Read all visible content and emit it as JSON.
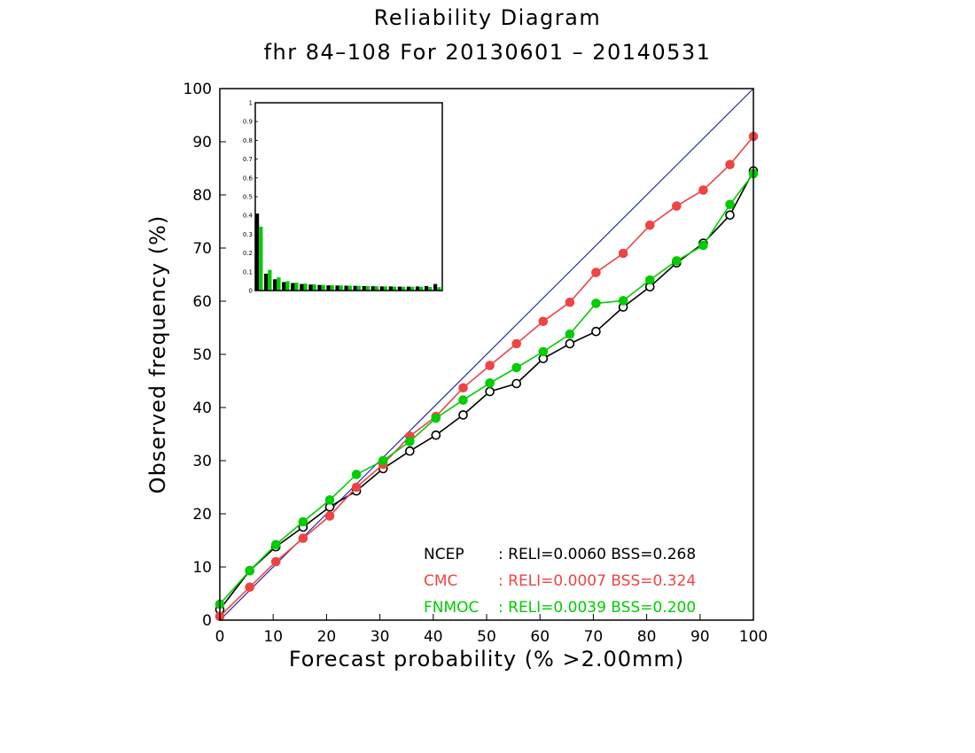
{
  "chart_data": {
    "type": "line",
    "title": "Reliability Diagram",
    "subtitle": "fhr 84–108 For 20130601 – 20140531",
    "xlabel": "Forecast probability (% >2.00mm)",
    "ylabel": "Observed frequency (%)",
    "xlim": [
      0,
      100
    ],
    "ylim": [
      0,
      100
    ],
    "x_ticks": [
      "0",
      "10",
      "20",
      "30",
      "40",
      "50",
      "60",
      "70",
      "80",
      "90",
      "100"
    ],
    "y_ticks": [
      "0",
      "10",
      "20",
      "30",
      "40",
      "50",
      "60",
      "70",
      "80",
      "90",
      "100"
    ],
    "x": [
      0,
      5.6,
      10.5,
      15.6,
      20.6,
      25.6,
      30.6,
      35.6,
      40.5,
      45.6,
      50.6,
      55.6,
      60.6,
      65.6,
      70.5,
      75.6,
      80.6,
      85.6,
      90.6,
      95.6,
      100
    ],
    "perfect_line_color": "#1f2fae",
    "series": [
      {
        "name": "NCEP",
        "color": "#000000",
        "filled": false,
        "values": [
          2.0,
          9.3,
          13.8,
          17.5,
          21.3,
          24.3,
          28.5,
          31.8,
          34.8,
          38.6,
          43.0,
          44.5,
          49.2,
          52.0,
          54.3,
          58.9,
          62.7,
          67.2,
          70.9,
          76.2,
          84.5
        ]
      },
      {
        "name": "CMC",
        "color": "#ee4444",
        "filled": true,
        "values": [
          0.7,
          6.2,
          11.0,
          15.4,
          19.6,
          25.0,
          29.3,
          34.6,
          38.3,
          43.7,
          47.9,
          52.0,
          56.2,
          59.8,
          65.4,
          69.0,
          74.3,
          77.9,
          80.9,
          85.7,
          91.0
        ]
      },
      {
        "name": "FNMOC",
        "color": "#00cc00",
        "filled": true,
        "values": [
          3.0,
          9.3,
          14.2,
          18.5,
          22.6,
          27.4,
          30.0,
          33.6,
          38.0,
          41.4,
          44.6,
          47.5,
          50.5,
          53.8,
          59.6,
          60.1,
          64.0,
          67.6,
          70.5,
          78.2,
          84.0
        ]
      }
    ],
    "legend": {
      "placement": "bottom-right",
      "entries": [
        {
          "name": "NCEP",
          "text": ": RELI=0.0060  BSS=0.268",
          "color": "#000000"
        },
        {
          "name": "CMC",
          "text": ": RELI=0.0007  BSS=0.324",
          "color": "#ee4444"
        },
        {
          "name": "FNMOC",
          "text": ": RELI=0.0039  BSS=0.200",
          "color": "#00cc00"
        }
      ]
    },
    "inset": {
      "type": "bar",
      "placement": "top-left",
      "ylim": [
        0,
        1
      ],
      "y_ticks": [
        "0",
        "0.1",
        "0.2",
        "0.3",
        "0.4",
        "0.5",
        "0.6",
        "0.7",
        "0.8",
        "0.9",
        "1"
      ],
      "series": [
        {
          "name": "NCEP",
          "color": "#000000",
          "values": [
            0.41,
            0.09,
            0.06,
            0.045,
            0.04,
            0.035,
            0.032,
            0.03,
            0.028,
            0.027,
            0.026,
            0.025,
            0.024,
            0.023,
            0.022,
            0.022,
            0.021,
            0.021,
            0.022,
            0.024,
            0.035
          ]
        },
        {
          "name": "FNMOC",
          "color": "#00cc00",
          "values": [
            0.34,
            0.11,
            0.07,
            0.05,
            0.042,
            0.037,
            0.033,
            0.03,
            0.028,
            0.027,
            0.026,
            0.025,
            0.024,
            0.023,
            0.022,
            0.021,
            0.02,
            0.02,
            0.02,
            0.019,
            0.018
          ]
        }
      ]
    }
  }
}
